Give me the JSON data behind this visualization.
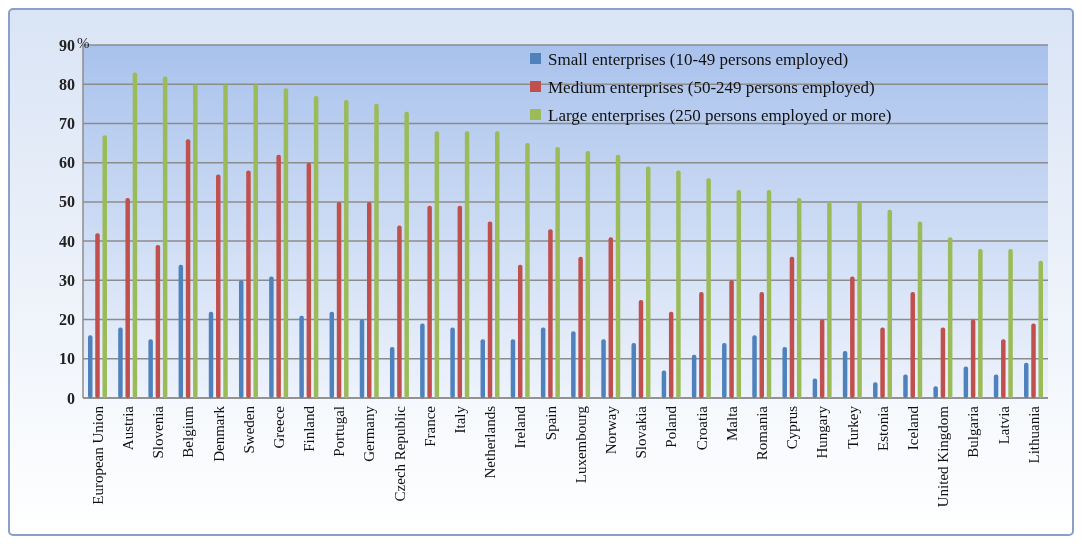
{
  "chart_data": {
    "type": "bar",
    "ylabel": "%",
    "categories": [
      "European Union",
      "Austria",
      "Slovenia",
      "Belgium",
      "Denmark",
      "Sweden",
      "Greece",
      "Finland",
      "Portugal",
      "Germany",
      "Czech Republic",
      "France",
      "Italy",
      "Netherlands",
      "Ireland",
      "Spain",
      "Luxembourg",
      "Norway",
      "Slovakia",
      "Poland",
      "Croatia",
      "Malta",
      "Romania",
      "Cyprus",
      "Hungary",
      "Turkey",
      "Estonia",
      "Iceland",
      "United Kingdom",
      "Bulgaria",
      "Latvia",
      "Lithuania"
    ],
    "series": [
      {
        "name": "Small enterprises (10-49 persons employed)",
        "color": "#4f81bd",
        "values": [
          16,
          18,
          15,
          34,
          22,
          30,
          31,
          21,
          22,
          20,
          13,
          19,
          18,
          15,
          15,
          18,
          17,
          15,
          14,
          7,
          11,
          14,
          16,
          13,
          5,
          12,
          4,
          6,
          3,
          8,
          6,
          9
        ]
      },
      {
        "name": "Medium enterprises (50-249 persons employed)",
        "color": "#c0504d",
        "values": [
          42,
          51,
          39,
          66,
          57,
          58,
          62,
          60,
          50,
          50,
          44,
          49,
          49,
          45,
          34,
          43,
          36,
          41,
          25,
          22,
          27,
          30,
          27,
          36,
          20,
          31,
          18,
          27,
          18,
          20,
          15,
          19
        ]
      },
      {
        "name": "Large enterprises (250 persons employed or more)",
        "color": "#9bbb59",
        "values": [
          67,
          83,
          82,
          80,
          80,
          80,
          79,
          77,
          76,
          75,
          73,
          68,
          68,
          68,
          65,
          64,
          63,
          62,
          59,
          58,
          56,
          53,
          53,
          51,
          50,
          50,
          48,
          45,
          41,
          38,
          38,
          35
        ]
      }
    ],
    "ylim": [
      0,
      90
    ],
    "yticks": [
      0,
      10,
      20,
      30,
      40,
      50,
      60,
      70,
      80,
      90
    ],
    "grid": "y",
    "legend": "top right"
  }
}
